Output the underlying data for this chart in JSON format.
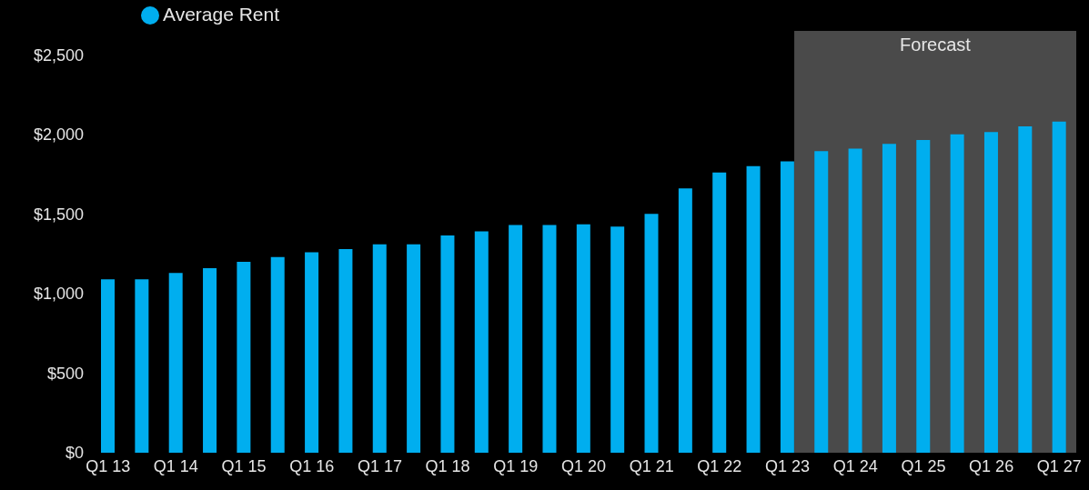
{
  "chart_data": {
    "type": "bar",
    "categories": [
      "Q1 13",
      null,
      "Q1 14",
      null,
      "Q1 15",
      null,
      "Q1 16",
      null,
      "Q1 17",
      null,
      "Q1 18",
      null,
      "Q1 19",
      null,
      "Q1 20",
      null,
      "Q1 21",
      null,
      "Q1 22",
      null,
      "Q1 23",
      null,
      "Q1 24",
      null,
      "Q1 25",
      null,
      "Q1 26",
      null,
      "Q1 27"
    ],
    "series": [
      {
        "name": "Average Rent",
        "color": "#00aeef",
        "values": [
          1090,
          1090,
          1130,
          1160,
          1200,
          1230,
          1260,
          1280,
          1310,
          1310,
          1365,
          1390,
          1430,
          1430,
          1435,
          1420,
          1500,
          1660,
          1760,
          1800,
          1830,
          1895,
          1910,
          1940,
          1965,
          2000,
          2015,
          2050,
          2080
        ]
      }
    ],
    "ylim": [
      0,
      2650
    ],
    "yticks": [
      {
        "value": 0,
        "label": "$0"
      },
      {
        "value": 500,
        "label": "$500"
      },
      {
        "value": 1000,
        "label": "$1,000"
      },
      {
        "value": 1500,
        "label": "$1,500"
      },
      {
        "value": 2000,
        "label": "$2,000"
      },
      {
        "value": 2500,
        "label": "$2,500"
      }
    ],
    "bands": [
      {
        "axis": "x",
        "from": "Q1 23",
        "to": "Q1 27",
        "label": "Forecast",
        "color": "#4a4a4a"
      }
    ],
    "grid": false,
    "legend": "top left"
  }
}
